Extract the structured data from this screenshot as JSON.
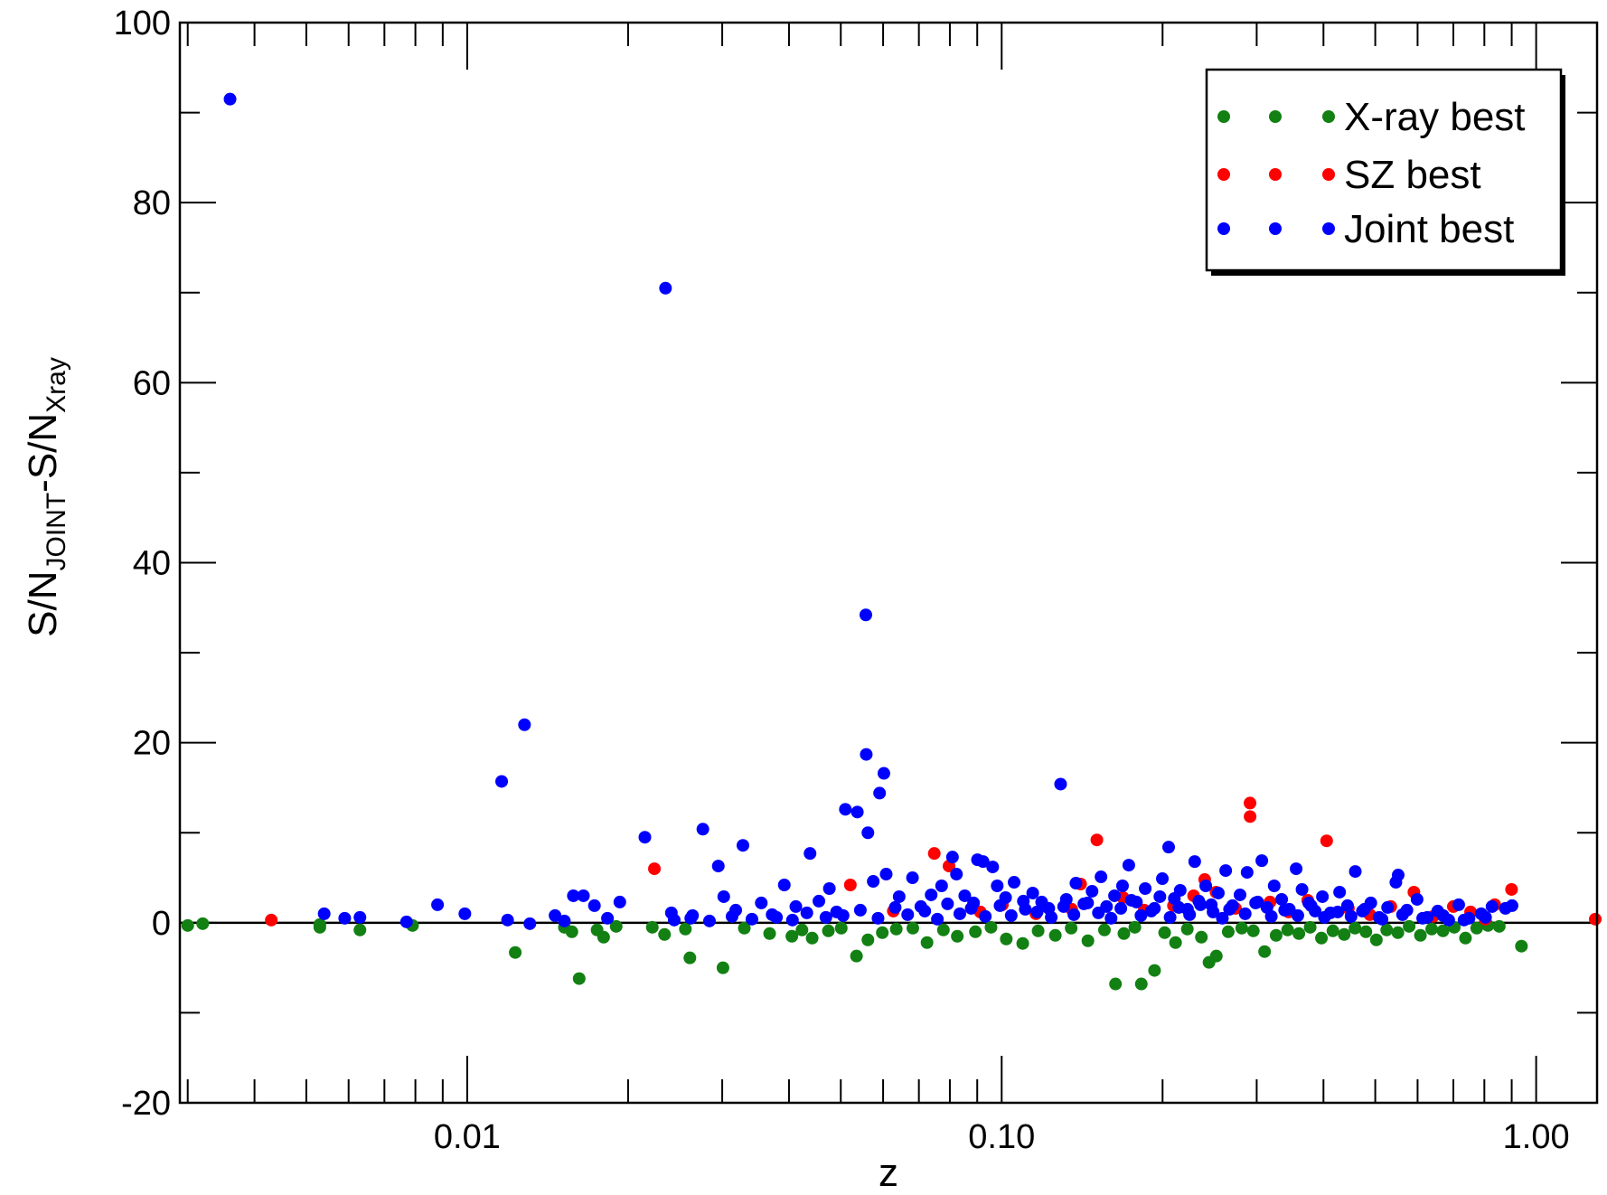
{
  "chart_data": {
    "type": "scatter",
    "xlabel": "z",
    "ylabel": {
      "main1": "S/N",
      "sub1": "JOINT",
      "mid": "-S/N",
      "sub2": "Xray"
    },
    "xscale": "log",
    "xlim": [
      0.0029,
      1.3
    ],
    "ylim": [
      -20,
      100
    ],
    "xticks": [
      0.01,
      0.1,
      1.0
    ],
    "xtick_labels": [
      "0.01",
      "0.10",
      "1.00"
    ],
    "yticks": [
      -20,
      0,
      20,
      40,
      60,
      80,
      100
    ],
    "ytick_labels": [
      "-20",
      "0",
      "20",
      "40",
      "60",
      "80",
      "100"
    ],
    "reference_line_y": 0,
    "grid": false,
    "legend_position": "top-right",
    "colors": {
      "xray": "#128012",
      "sz": "#ff0000",
      "joint": "#0000ff"
    },
    "series": [
      {
        "name": "X-ray best",
        "color": "#128012",
        "points": [
          [
            0.003,
            -0.3
          ],
          [
            0.0032,
            -0.1
          ],
          [
            0.0053,
            -0.5
          ],
          [
            0.0053,
            -0.2
          ],
          [
            0.0063,
            -0.8
          ],
          [
            0.0079,
            -0.3
          ],
          [
            0.0123,
            -3.3
          ],
          [
            0.0152,
            -0.5
          ],
          [
            0.0157,
            -1.0
          ],
          [
            0.0162,
            -6.2
          ],
          [
            0.0175,
            -0.8
          ],
          [
            0.018,
            -1.6
          ],
          [
            0.019,
            -0.4
          ],
          [
            0.0222,
            -0.5
          ],
          [
            0.0234,
            -1.3
          ],
          [
            0.0256,
            -0.7
          ],
          [
            0.0261,
            -3.9
          ],
          [
            0.0301,
            -5.0
          ],
          [
            0.033,
            -0.6
          ],
          [
            0.0368,
            -1.2
          ],
          [
            0.0405,
            -1.5
          ],
          [
            0.0423,
            -0.8
          ],
          [
            0.0442,
            -1.7
          ],
          [
            0.0474,
            -0.9
          ],
          [
            0.0501,
            -0.6
          ],
          [
            0.0535,
            -3.7
          ],
          [
            0.0562,
            -1.9
          ],
          [
            0.0598,
            -1.1
          ],
          [
            0.0635,
            -0.7
          ],
          [
            0.0682,
            -0.6
          ],
          [
            0.0725,
            -2.2
          ],
          [
            0.0778,
            -0.8
          ],
          [
            0.0826,
            -1.5
          ],
          [
            0.0893,
            -1.0
          ],
          [
            0.0955,
            -0.5
          ],
          [
            0.102,
            -1.8
          ],
          [
            0.1095,
            -2.3
          ],
          [
            0.117,
            -0.9
          ],
          [
            0.126,
            -1.4
          ],
          [
            0.1349,
            -0.6
          ],
          [
            0.145,
            -2.0
          ],
          [
            0.1557,
            -0.8
          ],
          [
            0.1633,
            -6.8
          ],
          [
            0.1693,
            -1.2
          ],
          [
            0.1775,
            -0.5
          ],
          [
            0.1825,
            -6.8
          ],
          [
            0.1932,
            -5.3
          ],
          [
            0.2018,
            -1.1
          ],
          [
            0.2115,
            -2.2
          ],
          [
            0.2225,
            -0.7
          ],
          [
            0.2364,
            -1.6
          ],
          [
            0.2443,
            -4.4
          ],
          [
            0.2521,
            -3.7
          ],
          [
            0.2654,
            -1.0
          ],
          [
            0.2813,
            -0.6
          ],
          [
            0.2957,
            -0.9
          ],
          [
            0.3104,
            -3.2
          ],
          [
            0.3262,
            -1.4
          ],
          [
            0.3428,
            -0.8
          ],
          [
            0.3598,
            -1.2
          ],
          [
            0.3777,
            -0.5
          ],
          [
            0.3965,
            -1.7
          ],
          [
            0.4166,
            -0.9
          ],
          [
            0.4374,
            -1.3
          ],
          [
            0.4582,
            -0.6
          ],
          [
            0.4802,
            -1.0
          ],
          [
            0.5024,
            -1.9
          ],
          [
            0.5252,
            -0.8
          ],
          [
            0.5512,
            -1.1
          ],
          [
            0.5786,
            -0.4
          ],
          [
            0.6074,
            -1.4
          ],
          [
            0.6376,
            -0.7
          ],
          [
            0.6694,
            -0.9
          ],
          [
            0.7026,
            -0.5
          ],
          [
            0.7375,
            -1.7
          ],
          [
            0.7741,
            -0.6
          ],
          [
            0.8126,
            -0.3
          ],
          [
            0.853,
            -0.4
          ],
          [
            0.9386,
            -2.6
          ]
        ]
      },
      {
        "name": "SZ best",
        "color": "#ff0000",
        "points": [
          [
            0.0043,
            0.3
          ],
          [
            0.0224,
            6.0
          ],
          [
            0.0521,
            4.2
          ],
          [
            0.0627,
            1.3
          ],
          [
            0.0748,
            7.7
          ],
          [
            0.0797,
            6.3
          ],
          [
            0.0912,
            1.2
          ],
          [
            0.1003,
            2.0
          ],
          [
            0.1159,
            1.0
          ],
          [
            0.1352,
            1.5
          ],
          [
            0.1405,
            4.3
          ],
          [
            0.1507,
            9.2
          ],
          [
            0.1687,
            2.8
          ],
          [
            0.1848,
            1.4
          ],
          [
            0.2096,
            1.9
          ],
          [
            0.2286,
            3.0
          ],
          [
            0.2398,
            4.8
          ],
          [
            0.2518,
            3.4
          ],
          [
            0.2738,
            1.6
          ],
          [
            0.2915,
            13.3
          ],
          [
            0.2916,
            11.8
          ],
          [
            0.3177,
            2.3
          ],
          [
            0.3443,
            1.2
          ],
          [
            0.3738,
            2.5
          ],
          [
            0.4055,
            9.1
          ],
          [
            0.4453,
            1.6
          ],
          [
            0.4886,
            0.9
          ],
          [
            0.5346,
            1.8
          ],
          [
            0.5906,
            3.4
          ],
          [
            0.6415,
            0.7
          ],
          [
            0.6999,
            1.8
          ],
          [
            0.7538,
            1.2
          ],
          [
            0.8031,
            0.4
          ],
          [
            0.8367,
            2.0
          ],
          [
            0.8994,
            3.7
          ],
          [
            1.29,
            0.4
          ]
        ]
      },
      {
        "name": "Joint best",
        "color": "#0000ff",
        "points": [
          [
            0.0036,
            91.5
          ],
          [
            0.0054,
            1.0
          ],
          [
            0.0059,
            0.5
          ],
          [
            0.0063,
            0.6
          ],
          [
            0.0077,
            0.1
          ],
          [
            0.0088,
            2.0
          ],
          [
            0.0099,
            1.0
          ],
          [
            0.0116,
            15.7
          ],
          [
            0.0119,
            0.3
          ],
          [
            0.0128,
            22.0
          ],
          [
            0.0131,
            -0.1
          ],
          [
            0.0146,
            0.8
          ],
          [
            0.0152,
            0.2
          ],
          [
            0.0158,
            3.0
          ],
          [
            0.0165,
            3.0
          ],
          [
            0.0173,
            1.9
          ],
          [
            0.0183,
            0.5
          ],
          [
            0.0193,
            2.3
          ],
          [
            0.0215,
            9.5
          ],
          [
            0.0235,
            70.5
          ],
          [
            0.0241,
            1.1
          ],
          [
            0.0264,
            0.8
          ],
          [
            0.0276,
            10.4
          ],
          [
            0.0295,
            6.3
          ],
          [
            0.0302,
            2.9
          ],
          [
            0.0318,
            1.4
          ],
          [
            0.0328,
            8.6
          ],
          [
            0.0355,
            2.2
          ],
          [
            0.0379,
            0.6
          ],
          [
            0.0392,
            4.2
          ],
          [
            0.0412,
            1.8
          ],
          [
            0.0438,
            7.7
          ],
          [
            0.0455,
            2.4
          ],
          [
            0.0476,
            3.8
          ],
          [
            0.0491,
            1.2
          ],
          [
            0.051,
            12.6
          ],
          [
            0.0537,
            12.3
          ],
          [
            0.0557,
            34.2
          ],
          [
            0.0558,
            18.7
          ],
          [
            0.0562,
            10.0
          ],
          [
            0.0575,
            4.6
          ],
          [
            0.0591,
            14.4
          ],
          [
            0.0602,
            16.6
          ],
          [
            0.0608,
            5.4
          ],
          [
            0.0643,
            2.9
          ],
          [
            0.0681,
            5.0
          ],
          [
            0.0706,
            1.8
          ],
          [
            0.0738,
            3.1
          ],
          [
            0.0772,
            4.1
          ],
          [
            0.0809,
            7.3
          ],
          [
            0.0823,
            5.4
          ],
          [
            0.0853,
            3.0
          ],
          [
            0.0886,
            2.2
          ],
          [
            0.0901,
            7.0
          ],
          [
            0.0923,
            6.8
          ],
          [
            0.0962,
            6.2
          ],
          [
            0.0981,
            4.1
          ],
          [
            0.1017,
            2.8
          ],
          [
            0.1055,
            4.5
          ],
          [
            0.1107,
            1.5
          ],
          [
            0.1143,
            3.3
          ],
          [
            0.1188,
            2.3
          ],
          [
            0.1225,
            1.6
          ],
          [
            0.1289,
            15.4
          ],
          [
            0.1321,
            2.6
          ],
          [
            0.1377,
            4.4
          ],
          [
            0.1425,
            2.1
          ],
          [
            0.1476,
            3.5
          ],
          [
            0.1534,
            5.1
          ],
          [
            0.1571,
            1.8
          ],
          [
            0.1626,
            3.0
          ],
          [
            0.1683,
            4.1
          ],
          [
            0.1729,
            6.4
          ],
          [
            0.1787,
            2.3
          ],
          [
            0.1856,
            3.8
          ],
          [
            0.1931,
            1.6
          ],
          [
            0.1998,
            4.9
          ],
          [
            0.2053,
            8.4
          ],
          [
            0.2104,
            2.7
          ],
          [
            0.2158,
            3.6
          ],
          [
            0.2227,
            1.5
          ],
          [
            0.2297,
            6.8
          ],
          [
            0.2338,
            2.4
          ],
          [
            0.2409,
            4.1
          ],
          [
            0.2467,
            2.0
          ],
          [
            0.2543,
            3.3
          ],
          [
            0.2625,
            5.8
          ],
          [
            0.2703,
            1.9
          ],
          [
            0.2792,
            3.1
          ],
          [
            0.2879,
            5.6
          ],
          [
            0.2986,
            2.2
          ],
          [
            0.3067,
            6.9
          ],
          [
            0.3136,
            1.7
          ],
          [
            0.3235,
            4.1
          ],
          [
            0.3341,
            2.6
          ],
          [
            0.3453,
            1.5
          ],
          [
            0.3556,
            6.0
          ],
          [
            0.3647,
            3.7
          ],
          [
            0.3754,
            2.2
          ],
          [
            0.3859,
            1.3
          ],
          [
            0.3982,
            2.9
          ],
          [
            0.4122,
            1.1
          ],
          [
            0.4288,
            3.4
          ],
          [
            0.4437,
            1.9
          ],
          [
            0.4588,
            5.7
          ],
          [
            0.4731,
            1.3
          ],
          [
            0.4905,
            2.2
          ],
          [
            0.5082,
            0.6
          ],
          [
            0.5273,
            1.7
          ],
          [
            0.5464,
            4.5
          ],
          [
            0.5519,
            5.3
          ],
          [
            0.5731,
            1.4
          ],
          [
            0.5987,
            2.6
          ],
          [
            0.6257,
            0.6
          ],
          [
            0.6544,
            1.3
          ],
          [
            0.6861,
            0.3
          ],
          [
            0.7163,
            2.0
          ],
          [
            0.7488,
            0.5
          ],
          [
            0.7893,
            1.0
          ],
          [
            0.8268,
            1.8
          ],
          [
            0.8761,
            1.6
          ],
          [
            0.9013,
            1.9
          ],
          [
            0.0244,
            0.3
          ],
          [
            0.0262,
            0.5
          ],
          [
            0.0284,
            0.2
          ],
          [
            0.0313,
            0.7
          ],
          [
            0.0341,
            0.4
          ],
          [
            0.0372,
            0.9
          ],
          [
            0.0406,
            0.3
          ],
          [
            0.0432,
            1.1
          ],
          [
            0.0469,
            0.6
          ],
          [
            0.0505,
            0.8
          ],
          [
            0.0544,
            1.4
          ],
          [
            0.0587,
            0.5
          ],
          [
            0.0632,
            1.7
          ],
          [
            0.0667,
            0.9
          ],
          [
            0.0718,
            1.3
          ],
          [
            0.0758,
            0.4
          ],
          [
            0.0792,
            2.1
          ],
          [
            0.0835,
            1.0
          ],
          [
            0.0877,
            1.6
          ],
          [
            0.0932,
            0.7
          ],
          [
            0.0993,
            1.9
          ],
          [
            0.1042,
            0.8
          ],
          [
            0.1098,
            2.4
          ],
          [
            0.1165,
            1.2
          ],
          [
            0.1238,
            0.6
          ],
          [
            0.1306,
            1.8
          ],
          [
            0.1365,
            0.9
          ],
          [
            0.1448,
            2.2
          ],
          [
            0.1517,
            1.1
          ],
          [
            0.1602,
            0.5
          ],
          [
            0.1671,
            1.6
          ],
          [
            0.1748,
            2.5
          ],
          [
            0.1822,
            0.8
          ],
          [
            0.1905,
            1.3
          ],
          [
            0.1977,
            2.9
          ],
          [
            0.2066,
            0.6
          ],
          [
            0.2145,
            1.7
          ],
          [
            0.2247,
            0.9
          ],
          [
            0.2355,
            2.0
          ],
          [
            0.2486,
            1.2
          ],
          [
            0.2588,
            0.5
          ],
          [
            0.2669,
            1.5
          ],
          [
            0.2855,
            1.0
          ],
          [
            0.3013,
            2.3
          ],
          [
            0.3195,
            0.7
          ],
          [
            0.3384,
            1.4
          ],
          [
            0.3582,
            0.8
          ],
          [
            0.3792,
            1.9
          ],
          [
            0.4017,
            0.6
          ],
          [
            0.4254,
            1.2
          ],
          [
            0.4505,
            0.7
          ],
          [
            0.4774,
            1.5
          ],
          [
            0.5147,
            0.4
          ],
          [
            0.5624,
            0.9
          ],
          [
            0.6133,
            0.5
          ],
          [
            0.6698,
            0.8
          ],
          [
            0.7329,
            0.3
          ],
          [
            0.8041,
            0.6
          ]
        ]
      }
    ]
  }
}
